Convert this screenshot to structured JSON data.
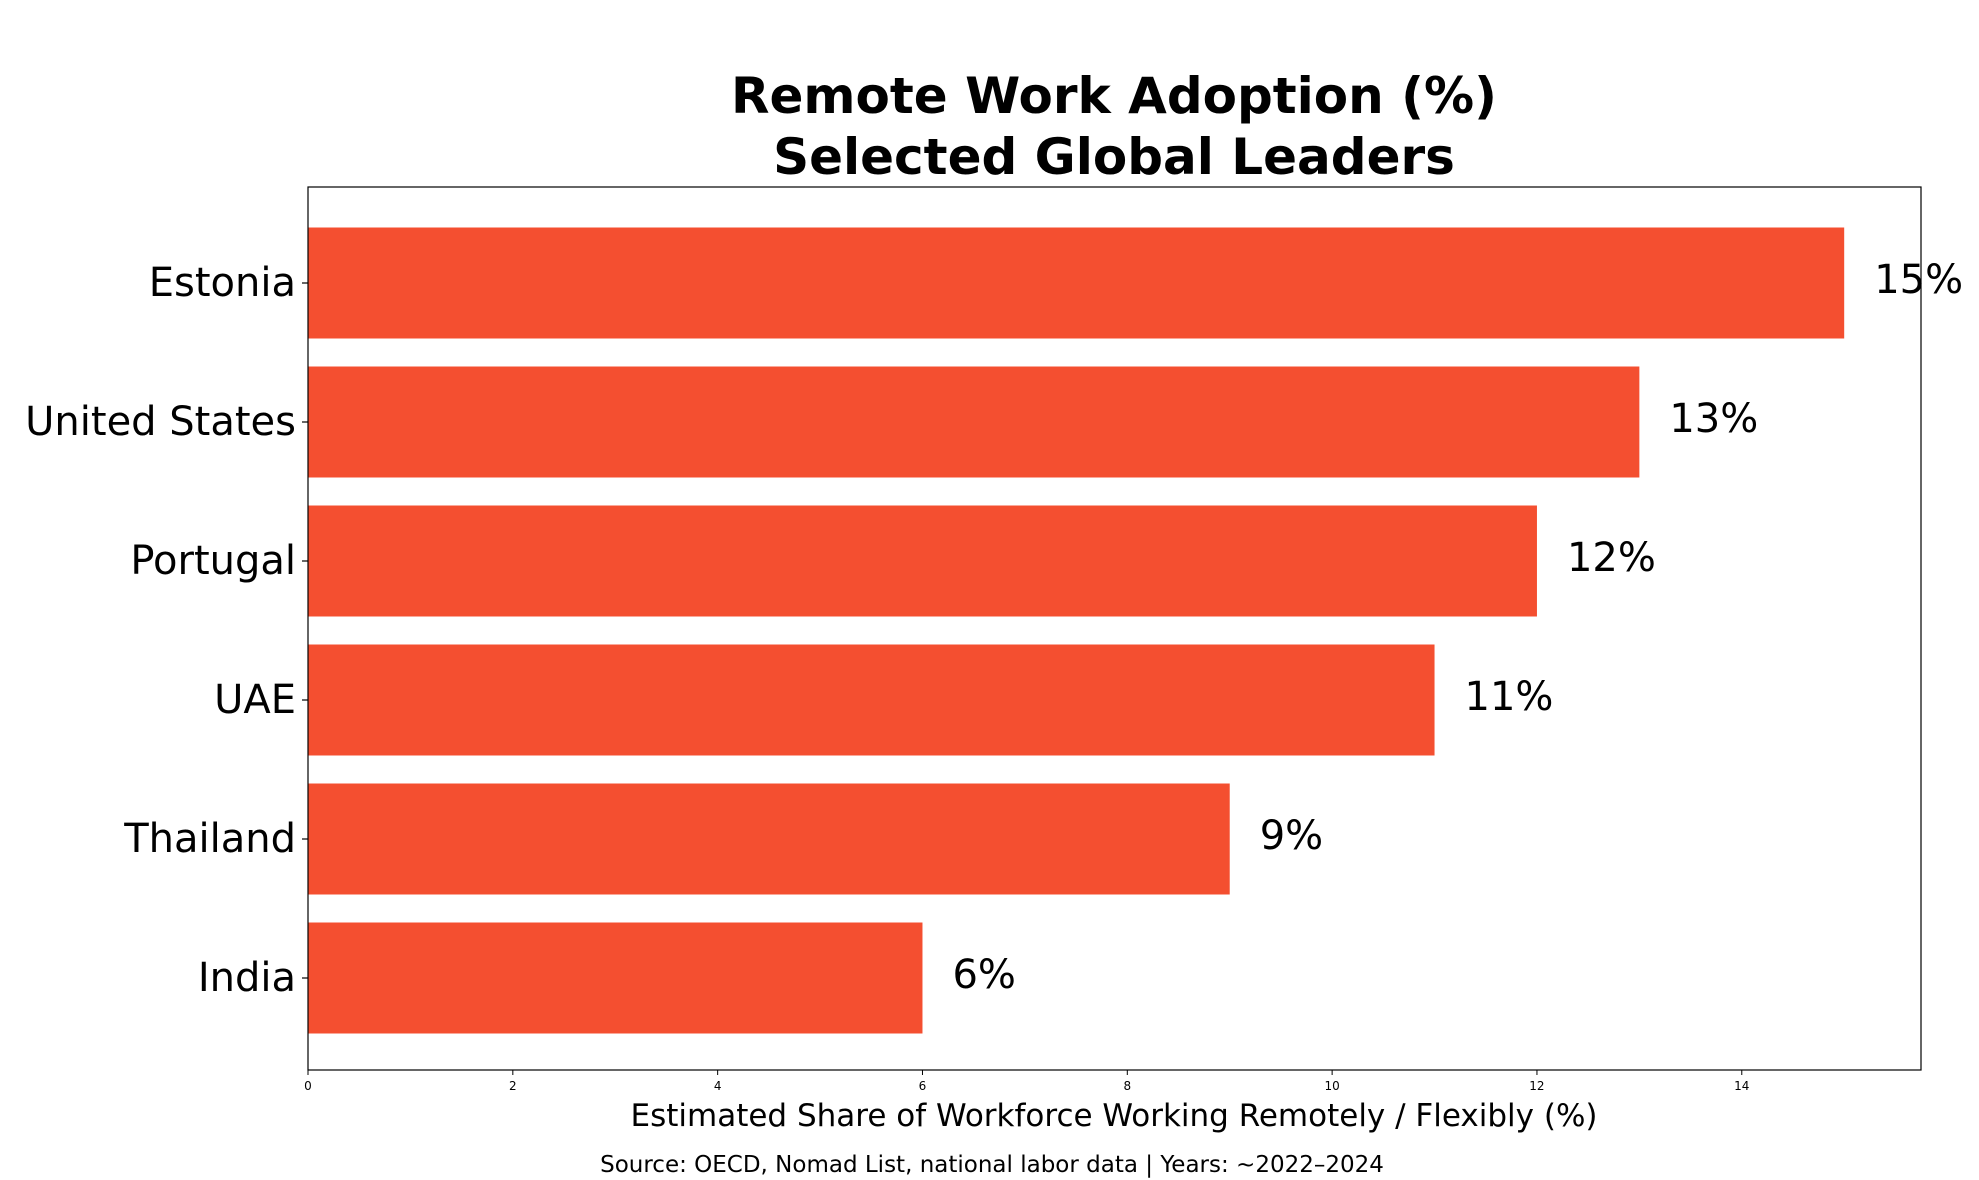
{
  "chart_data": {
    "type": "bar",
    "orientation": "horizontal",
    "title_lines": [
      "Remote Work Adoption (%)",
      "Selected Global Leaders"
    ],
    "categories": [
      "Estonia",
      "United States",
      "Portugal",
      "UAE",
      "Thailand",
      "India"
    ],
    "values": [
      15,
      13,
      12,
      11,
      9,
      6
    ],
    "value_labels": [
      "15%",
      "13%",
      "12%",
      "11%",
      "9%",
      "6%"
    ],
    "xlabel": "Estimated Share of Workforce Working Remotely / Flexibly (%)",
    "ylabel": "",
    "xlim": [
      0,
      15.75
    ],
    "xticks": [
      0,
      2,
      4,
      6,
      8,
      10,
      12,
      14
    ],
    "grid": false,
    "bar_color": "#f44f30",
    "source": "Source: OECD, Nomad List, national labor data | Years: ~2022–2024"
  }
}
